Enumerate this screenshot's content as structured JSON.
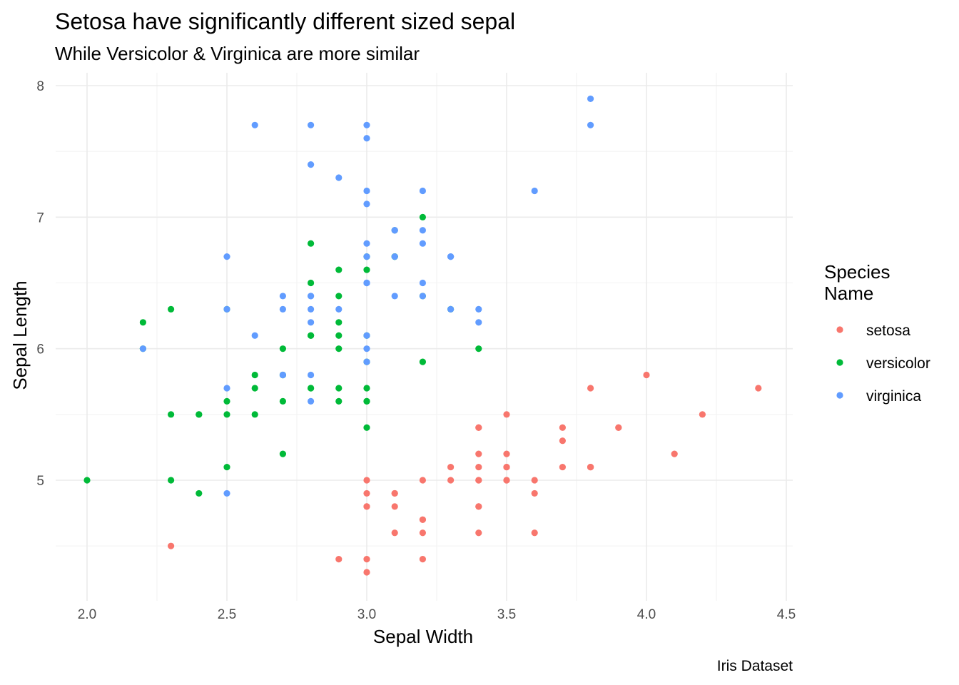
{
  "chart_data": {
    "type": "scatter",
    "title": "Setosa have significantly different sized sepal",
    "subtitle": "While Versicolor & Virginica are more similar",
    "xlabel": "Sepal Width",
    "ylabel": "Sepal Length",
    "caption": "Iris Dataset",
    "xlim": [
      1.9,
      4.5
    ],
    "ylim": [
      4.2,
      8.0
    ],
    "x_ticks": [
      2.0,
      2.5,
      3.0,
      3.5,
      4.0,
      4.5
    ],
    "x_tick_labels": [
      "2.0",
      "2.5",
      "3.0",
      "3.5",
      "4.0",
      "4.5"
    ],
    "y_ticks": [
      5,
      6,
      7,
      8
    ],
    "y_tick_labels": [
      "5",
      "6",
      "7",
      "8"
    ],
    "grid": true,
    "legend": {
      "title_lines": [
        "Species",
        "Name"
      ],
      "position": "right"
    },
    "series": [
      {
        "name": "setosa",
        "color": "#F8766D",
        "x": [
          3.5,
          3.0,
          3.2,
          3.1,
          3.6,
          3.9,
          3.4,
          3.4,
          2.9,
          3.1,
          3.7,
          3.4,
          3.0,
          3.0,
          4.0,
          4.4,
          3.9,
          3.5,
          3.8,
          3.8,
          3.4,
          3.7,
          3.6,
          3.3,
          3.4,
          3.0,
          3.4,
          3.5,
          3.4,
          3.2,
          3.1,
          3.4,
          4.1,
          4.2,
          3.1,
          3.2,
          3.5,
          3.6,
          3.0,
          3.4,
          3.5,
          2.3,
          3.2,
          3.5,
          3.8,
          3.0,
          3.8,
          3.2,
          3.7,
          3.3
        ],
        "y": [
          5.1,
          4.9,
          4.7,
          4.6,
          5.0,
          5.4,
          4.6,
          5.0,
          4.4,
          4.9,
          5.4,
          4.8,
          4.8,
          4.3,
          5.8,
          5.7,
          5.4,
          5.1,
          5.7,
          5.1,
          5.4,
          5.1,
          4.6,
          5.1,
          4.8,
          5.0,
          5.0,
          5.2,
          5.2,
          4.7,
          4.8,
          5.4,
          5.2,
          5.5,
          4.9,
          5.0,
          5.5,
          4.9,
          4.4,
          5.1,
          5.0,
          4.5,
          4.4,
          5.0,
          5.1,
          4.8,
          5.1,
          4.6,
          5.3,
          5.0
        ]
      },
      {
        "name": "versicolor",
        "color": "#00BA38",
        "x": [
          3.2,
          3.2,
          3.1,
          2.3,
          2.8,
          2.8,
          3.3,
          2.4,
          2.9,
          2.7,
          2.0,
          3.0,
          2.2,
          2.9,
          2.9,
          3.1,
          3.0,
          2.7,
          2.2,
          2.5,
          3.2,
          2.8,
          2.5,
          2.8,
          2.9,
          3.0,
          2.8,
          3.0,
          2.9,
          2.6,
          2.4,
          2.4,
          2.7,
          2.7,
          3.0,
          3.4,
          3.1,
          2.3,
          3.0,
          2.5,
          2.6,
          3.0,
          2.6,
          2.3,
          2.7,
          3.0,
          2.9,
          2.9,
          2.5,
          2.8
        ],
        "y": [
          7.0,
          6.4,
          6.9,
          5.5,
          6.5,
          5.7,
          6.3,
          4.9,
          6.6,
          5.2,
          5.0,
          5.9,
          6.0,
          6.1,
          5.6,
          6.7,
          5.6,
          5.8,
          6.2,
          5.6,
          5.9,
          6.1,
          6.3,
          6.1,
          6.4,
          6.6,
          6.8,
          6.7,
          6.0,
          5.7,
          5.5,
          5.5,
          5.8,
          6.0,
          5.4,
          6.0,
          6.7,
          6.3,
          5.6,
          5.5,
          5.5,
          6.1,
          5.8,
          5.0,
          5.6,
          5.7,
          5.7,
          6.2,
          5.1,
          5.7
        ]
      },
      {
        "name": "virginica",
        "color": "#619CFF",
        "x": [
          3.3,
          2.7,
          3.0,
          2.9,
          3.0,
          3.0,
          2.5,
          2.9,
          2.5,
          3.6,
          3.2,
          2.7,
          3.0,
          2.5,
          2.8,
          3.2,
          3.0,
          3.8,
          2.6,
          2.2,
          3.2,
          2.8,
          2.8,
          2.7,
          3.3,
          3.2,
          2.8,
          3.0,
          2.8,
          3.0,
          2.8,
          3.8,
          2.8,
          2.8,
          2.6,
          3.0,
          3.4,
          3.1,
          3.0,
          3.1,
          3.1,
          3.1,
          2.7,
          3.2,
          3.3,
          3.0,
          2.5,
          3.0,
          3.4,
          3.0
        ],
        "y": [
          6.3,
          5.8,
          7.1,
          6.3,
          6.5,
          7.6,
          4.9,
          7.3,
          6.7,
          7.2,
          6.5,
          6.4,
          6.8,
          5.7,
          5.8,
          6.4,
          6.5,
          7.7,
          7.7,
          6.0,
          6.9,
          5.6,
          7.7,
          6.3,
          6.7,
          7.2,
          6.2,
          6.1,
          6.4,
          7.2,
          7.4,
          7.9,
          6.4,
          6.3,
          6.1,
          7.7,
          6.3,
          6.4,
          6.0,
          6.9,
          6.7,
          6.9,
          5.8,
          6.8,
          6.7,
          6.7,
          6.3,
          6.5,
          6.2,
          5.9
        ]
      }
    ]
  }
}
